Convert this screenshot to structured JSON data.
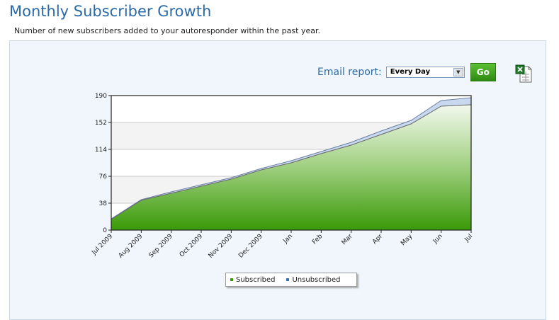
{
  "header": {
    "title": "Monthly Subscriber Growth",
    "subtitle": "Number of new subscribers added to your autoresponder within the past year."
  },
  "controls": {
    "email_report_label": "Email report:",
    "select_value": "Every Day",
    "go_label": "Go",
    "export_icon": "excel-icon"
  },
  "colors": {
    "subscribed": "#3c9a0e",
    "unsubscribed": "#3a6fb0",
    "title": "#2b6aa6"
  },
  "chart_data": {
    "type": "area",
    "categories": [
      "Jul 2009",
      "Aug 2009",
      "Sep 2009",
      "Oct 2009",
      "Nov 2009",
      "Dec 2009",
      "Jan",
      "Feb",
      "Mar",
      "Apr",
      "May",
      "Jun",
      "Jul"
    ],
    "series": [
      {
        "name": "Subscribed",
        "values": [
          15,
          42,
          52,
          62,
          72,
          85,
          95,
          108,
          120,
          135,
          150,
          175,
          177
        ]
      },
      {
        "name": "Unsubscribed",
        "values": [
          1,
          1,
          2,
          2,
          2,
          2,
          3,
          3,
          4,
          5,
          5,
          8,
          10
        ]
      }
    ],
    "stacked": true,
    "y_ticks": [
      "0",
      "38",
      "76",
      "114",
      "152",
      "190"
    ],
    "ylim": [
      0,
      190
    ],
    "grid": true,
    "legend_position": "bottom-center"
  }
}
